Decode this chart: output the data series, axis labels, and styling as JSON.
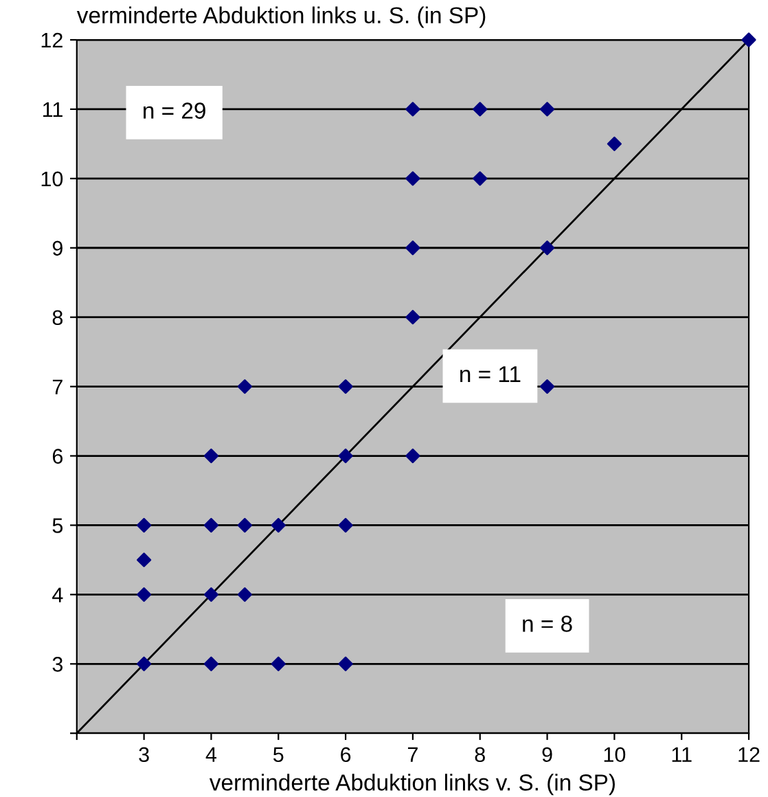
{
  "chart_data": {
    "type": "scatter",
    "xlabel": "verminderte Abduktion links v. S. (in SP)",
    "ylabel": "verminderte Abduktion links u. S. (in SP)",
    "xlim": [
      2,
      12
    ],
    "ylim": [
      2,
      12
    ],
    "xticks": [
      {
        "value": 2,
        "label": null
      },
      3,
      4,
      5,
      6,
      7,
      8,
      9,
      10,
      11,
      12
    ],
    "yticks": [
      {
        "value": 2,
        "label": null
      },
      3,
      4,
      5,
      6,
      7,
      8,
      9,
      10,
      11,
      12
    ],
    "grid": "y",
    "marker": "diamond",
    "annotations": [
      "n = 29",
      "n = 11",
      "n = 8"
    ],
    "series": [
      {
        "color": "#000080",
        "x": [
          3,
          3,
          3,
          3,
          4,
          4,
          4,
          4,
          4.5,
          4.5,
          4.5,
          5,
          5,
          6,
          6,
          6,
          6,
          7,
          7,
          7,
          7,
          7,
          8,
          8,
          9,
          9,
          9,
          10,
          12
        ],
        "values": [
          3,
          4,
          4.5,
          5,
          3,
          4,
          5,
          6,
          4,
          5,
          7,
          3,
          5,
          3,
          5,
          6,
          7,
          6,
          8,
          9,
          10,
          11,
          10,
          11,
          7,
          9,
          11,
          10.5,
          12
        ]
      },
      {
        "type": "line",
        "color": "#000000",
        "x": [
          2,
          12
        ],
        "values": [
          2,
          12
        ],
        "marker": "none"
      }
    ]
  }
}
